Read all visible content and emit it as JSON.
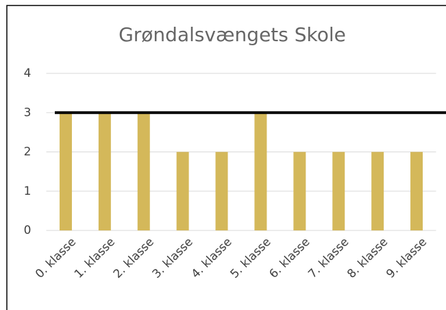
{
  "chart_data": {
    "type": "bar",
    "title": "Grøndalsvængets Skole",
    "categories": [
      "0. klasse",
      "1. klasse",
      "2. klasse",
      "3. klasse",
      "4. klasse",
      "5. klasse",
      "6. klasse",
      "7. klasse",
      "8. klasse",
      "9. klasse"
    ],
    "values": [
      3,
      3,
      3,
      2,
      2,
      3,
      2,
      2,
      2,
      2
    ],
    "color": "#d4b85a",
    "ylim": [
      0,
      4
    ],
    "yticks": [
      0,
      1,
      2,
      3,
      4
    ],
    "grid": true,
    "reference_line": 3
  }
}
